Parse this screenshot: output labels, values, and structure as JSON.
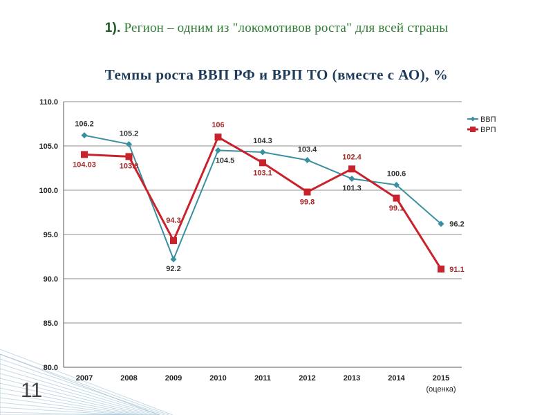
{
  "slide": {
    "heading_number": "1).",
    "heading_text": "Регион – одним из \"локомотивов роста\" для всей страны",
    "subtitle": "Темпы роста ВВП РФ и ВРП ТО (вместе с АО), %",
    "page_number": "11"
  },
  "chart_data": {
    "type": "line",
    "title": "Темпы роста ВВП РФ и ВРП ТО (вместе с АО), %",
    "xlabel": "",
    "ylabel": "",
    "categories": [
      "2007",
      "2008",
      "2009",
      "2010",
      "2011",
      "2012",
      "2013",
      "2014",
      "2015"
    ],
    "category_note": "(оценка)",
    "ylim": [
      80,
      110
    ],
    "yticks": [
      "80.0",
      "85.0",
      "90.0",
      "95.0",
      "100.0",
      "105.0",
      "110.0"
    ],
    "grid": true,
    "legend": "top-right",
    "series": [
      {
        "name": "ВВП",
        "color": "#3a8fa0",
        "marker": "diamond",
        "values": [
          106.2,
          105.2,
          92.2,
          104.5,
          104.3,
          103.4,
          101.3,
          100.6,
          96.2
        ],
        "labels": [
          "106.2",
          "105.2",
          "92.2",
          "104.5",
          "104.3",
          "103.4",
          "101.3",
          "100.6",
          "96.2"
        ],
        "label_color": "#333333"
      },
      {
        "name": "ВРП",
        "color": "#c8232c",
        "marker": "square",
        "values": [
          104.03,
          103.8,
          94.3,
          106,
          103.1,
          99.8,
          102.4,
          99.1,
          91.1
        ],
        "labels": [
          "104.03",
          "103.8",
          "94.3",
          "106",
          "103.1",
          "99.8",
          "102.4",
          "99.1",
          "91.1"
        ],
        "label_color": "#a52a2a"
      }
    ]
  }
}
